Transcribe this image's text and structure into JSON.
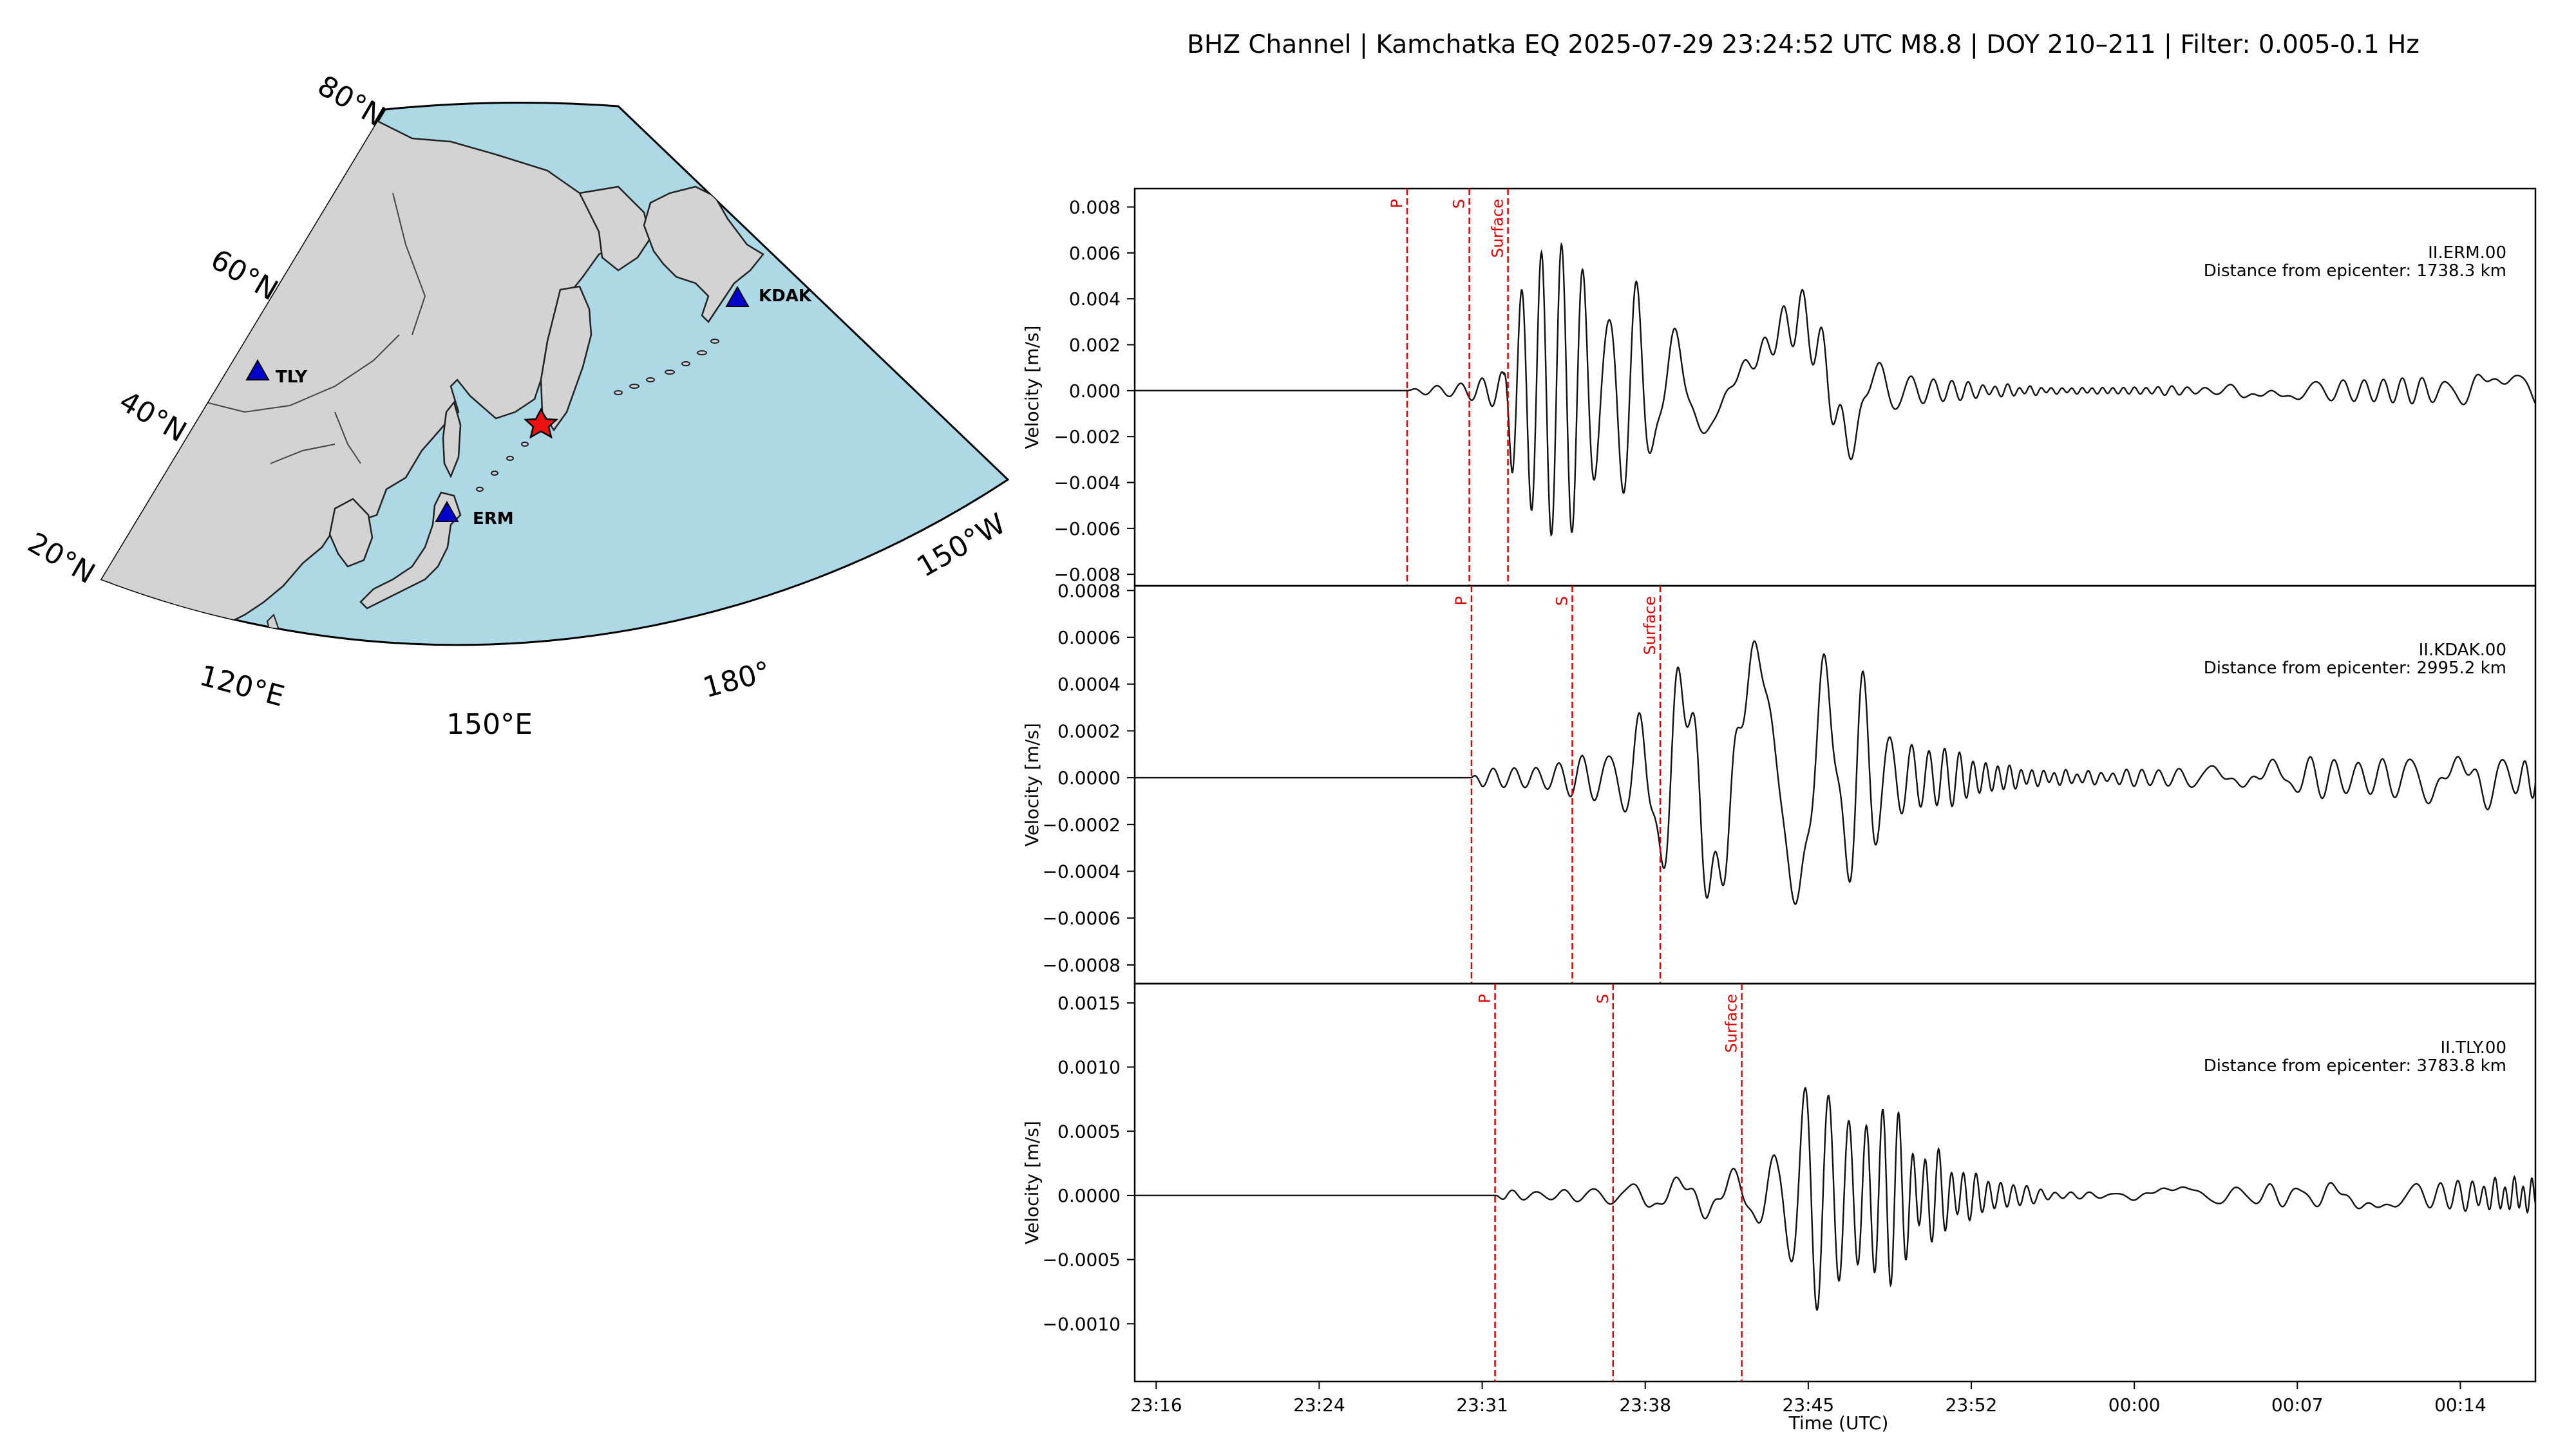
{
  "title": "BHZ Channel | Kamchatka EQ 2025-07-29 23:24:52 UTC M8.8 | DOY 210–211 | Filter: 0.005-0.1 Hz",
  "map": {
    "lat_labels": [
      "80°N",
      "60°N",
      "40°N",
      "20°N"
    ],
    "lon_labels": [
      "120°E",
      "150°E",
      "180°",
      "150°W"
    ],
    "stations": [
      {
        "code": "TLY",
        "lat": 51.7,
        "lon": 103.6
      },
      {
        "code": "ERM",
        "lat": 42.0,
        "lon": 143.2
      },
      {
        "code": "KDAK",
        "lat": 57.8,
        "lon": -152.6
      }
    ],
    "epicenter": {
      "lat": 52.5,
      "lon": 160.3
    },
    "colors": {
      "ocean": "#add8e6",
      "land": "#d3d3d3",
      "station": "#0000cd",
      "epicenter": "#ee1111"
    }
  },
  "chart_data": {
    "type": "line",
    "xlabel": "Time (UTC)",
    "x_ticks": [
      "23:16",
      "23:24",
      "23:31",
      "23:38",
      "23:45",
      "23:52",
      "00:00",
      "00:07",
      "00:14"
    ],
    "x_tick_minutes": [
      0,
      7.6,
      15.2,
      22.8,
      30.4,
      38.0,
      45.6,
      53.2,
      60.8
    ],
    "x_range_minutes": [
      -1.0,
      64.3
    ],
    "panels": [
      {
        "station": "II.ERM.00",
        "distance_text": "Distance from epicenter: 1738.3 km",
        "ylabel": "Velocity [m/s]",
        "ylim": [
          -0.0085,
          0.0088
        ],
        "y_ticks": [
          "0.008",
          "0.006",
          "0.004",
          "0.002",
          "0.000",
          "−0.002",
          "−0.004",
          "−0.006",
          "−0.008"
        ],
        "y_tick_values": [
          0.008,
          0.006,
          0.004,
          0.002,
          0.0,
          -0.002,
          -0.004,
          -0.006,
          -0.008
        ],
        "phases": [
          {
            "label": "P",
            "minute": 11.7
          },
          {
            "label": "S",
            "minute": 14.6
          },
          {
            "label": "Surface",
            "minute": 16.4
          }
        ],
        "envelope": [
          [
            0,
            0
          ],
          [
            11.7,
            0
          ],
          [
            12.5,
            0.0002
          ],
          [
            14.6,
            0.0007
          ],
          [
            16.2,
            0.0012
          ],
          [
            16.6,
            0.005
          ],
          [
            18.0,
            0.0075
          ],
          [
            19.5,
            0.008
          ],
          [
            21.0,
            0.0068
          ],
          [
            23.0,
            0.004
          ],
          [
            25.0,
            0.0025
          ],
          [
            28.0,
            0.0022
          ],
          [
            30.0,
            0.0048
          ],
          [
            31.5,
            0.0045
          ],
          [
            33.5,
            0.0015
          ],
          [
            35.5,
            0.0008
          ],
          [
            38.0,
            0.0004
          ],
          [
            42.0,
            0.00015
          ],
          [
            46.0,
            0.0002
          ],
          [
            50.0,
            0.0003
          ],
          [
            55.0,
            0.0006
          ],
          [
            60.0,
            0.0008
          ],
          [
            64.3,
            0.0009
          ]
        ]
      },
      {
        "station": "II.KDAK.00",
        "distance_text": "Distance from epicenter: 2995.2 km",
        "ylabel": "Velocity [m/s]",
        "ylim": [
          -0.00088,
          0.00082
        ],
        "y_ticks": [
          "0.0008",
          "0.0006",
          "0.0004",
          "0.0002",
          "0.0000",
          "−0.0002",
          "−0.0004",
          "−0.0006",
          "−0.0008"
        ],
        "y_tick_values": [
          0.0008,
          0.0006,
          0.0004,
          0.0002,
          0.0,
          -0.0002,
          -0.0004,
          -0.0006,
          -0.0008
        ],
        "phases": [
          {
            "label": "P",
            "minute": 14.7
          },
          {
            "label": "S",
            "minute": 19.4
          },
          {
            "label": "Surface",
            "minute": 23.5
          }
        ],
        "envelope": [
          [
            0,
            0
          ],
          [
            14.7,
            0
          ],
          [
            15.2,
            4e-05
          ],
          [
            18.0,
            7e-05
          ],
          [
            19.5,
            0.00012
          ],
          [
            22.0,
            0.00018
          ],
          [
            23.3,
            0.0005
          ],
          [
            25.0,
            0.0006
          ],
          [
            27.5,
            0.00072
          ],
          [
            30.0,
            0.0007
          ],
          [
            32.0,
            0.00055
          ],
          [
            34.0,
            0.0004
          ],
          [
            36.0,
            0.00022
          ],
          [
            38.0,
            0.0001
          ],
          [
            41.0,
            4e-05
          ],
          [
            44.0,
            3e-05
          ],
          [
            47.0,
            5e-05
          ],
          [
            52.0,
            8e-05
          ],
          [
            58.0,
            0.00012
          ],
          [
            64.3,
            0.00015
          ]
        ]
      },
      {
        "station": "II.TLY.00",
        "distance_text": "Distance from epicenter: 3783.8 km",
        "ylabel": "Velocity [m/s]",
        "ylim": [
          -0.00145,
          0.00165
        ],
        "y_ticks": [
          "0.0015",
          "0.0010",
          "0.0005",
          "0.0000",
          "−0.0005",
          "−0.0010"
        ],
        "y_tick_values": [
          0.0015,
          0.001,
          0.0005,
          0.0,
          -0.0005,
          -0.001
        ],
        "phases": [
          {
            "label": "P",
            "minute": 15.8
          },
          {
            "label": "S",
            "minute": 21.3
          },
          {
            "label": "Surface",
            "minute": 27.3
          }
        ],
        "envelope": [
          [
            0,
            0
          ],
          [
            15.8,
            0
          ],
          [
            16.3,
            5e-05
          ],
          [
            20.0,
            6e-05
          ],
          [
            21.5,
            0.0001
          ],
          [
            24.0,
            0.00015
          ],
          [
            27.0,
            0.00022
          ],
          [
            29.0,
            0.0004
          ],
          [
            30.5,
            0.0013
          ],
          [
            31.5,
            0.0012
          ],
          [
            33.0,
            0.0009
          ],
          [
            35.0,
            0.0006
          ],
          [
            37.0,
            0.0003
          ],
          [
            39.0,
            0.00015
          ],
          [
            42.0,
            4e-05
          ],
          [
            45.0,
            3e-05
          ],
          [
            48.0,
            8e-05
          ],
          [
            53.0,
            0.0001
          ],
          [
            58.0,
            0.00012
          ],
          [
            64.3,
            0.00015
          ]
        ]
      }
    ]
  }
}
